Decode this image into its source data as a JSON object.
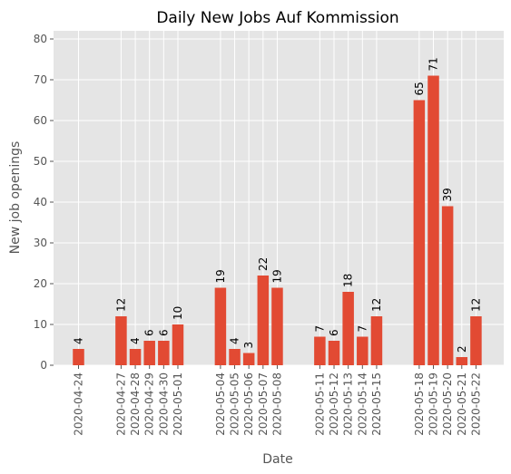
{
  "chart_data": {
    "type": "bar",
    "title": "Daily New Jobs Auf Kommission",
    "xlabel": "Date",
    "ylabel": "New job openings",
    "ylim": [
      0,
      82
    ],
    "yticks": [
      0,
      10,
      20,
      30,
      40,
      50,
      60,
      70,
      80
    ],
    "grid": true,
    "x_axis": "date",
    "categories": [
      "2020-04-24",
      "2020-04-27",
      "2020-04-28",
      "2020-04-29",
      "2020-04-30",
      "2020-05-01",
      "2020-05-04",
      "2020-05-05",
      "2020-05-06",
      "2020-05-07",
      "2020-05-08",
      "2020-05-11",
      "2020-05-12",
      "2020-05-13",
      "2020-05-14",
      "2020-05-15",
      "2020-05-18",
      "2020-05-19",
      "2020-05-20",
      "2020-05-21",
      "2020-05-22"
    ],
    "values": [
      4,
      12,
      4,
      6,
      6,
      10,
      19,
      4,
      3,
      22,
      19,
      7,
      6,
      18,
      7,
      12,
      65,
      71,
      39,
      2,
      12
    ],
    "bar_color": "#E24A33",
    "background_color": "#E5E5E5",
    "grid_color": "#FFFFFF"
  }
}
